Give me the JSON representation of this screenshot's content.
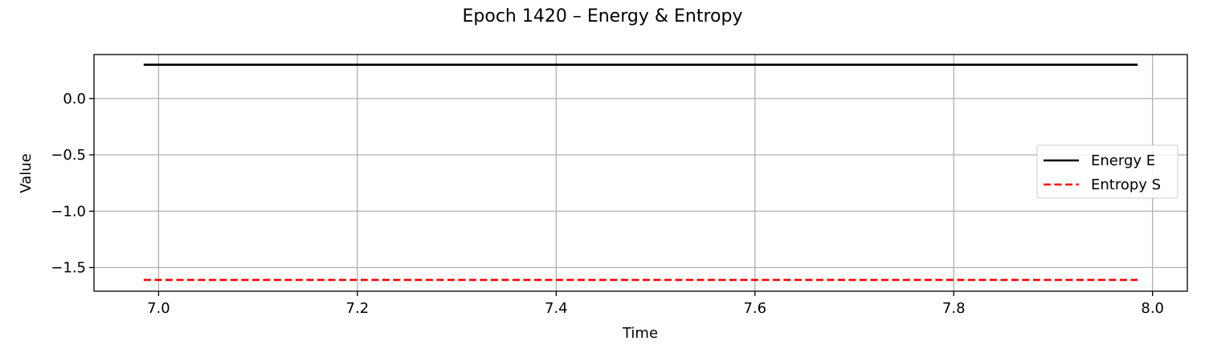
{
  "chart_data": {
    "type": "line",
    "title": "Epoch 1420 – Energy & Entropy",
    "xlabel": "Time",
    "ylabel": "Value",
    "xlim": [
      6.935,
      8.035
    ],
    "ylim": [
      -1.71,
      0.39
    ],
    "x_ticks": [
      7.0,
      7.2,
      7.4,
      7.6,
      7.8,
      8.0
    ],
    "x_tick_labels": [
      "7.0",
      "7.2",
      "7.4",
      "7.6",
      "7.8",
      "8.0"
    ],
    "y_ticks": [
      0.0,
      -0.5,
      -1.0,
      -1.5
    ],
    "y_tick_labels": [
      "0.0",
      "−0.5",
      "−1.0",
      "−1.5"
    ],
    "grid": true,
    "legend_position": "center-right",
    "series": [
      {
        "name": "Energy E",
        "color": "#000000",
        "dash": "solid",
        "x": [
          6.985,
          7.985
        ],
        "y": [
          0.3,
          0.3
        ]
      },
      {
        "name": "Entropy S",
        "color": "#ff0000",
        "dash": "dashed",
        "x": [
          6.985,
          7.985
        ],
        "y": [
          -1.61,
          -1.61
        ]
      }
    ]
  }
}
